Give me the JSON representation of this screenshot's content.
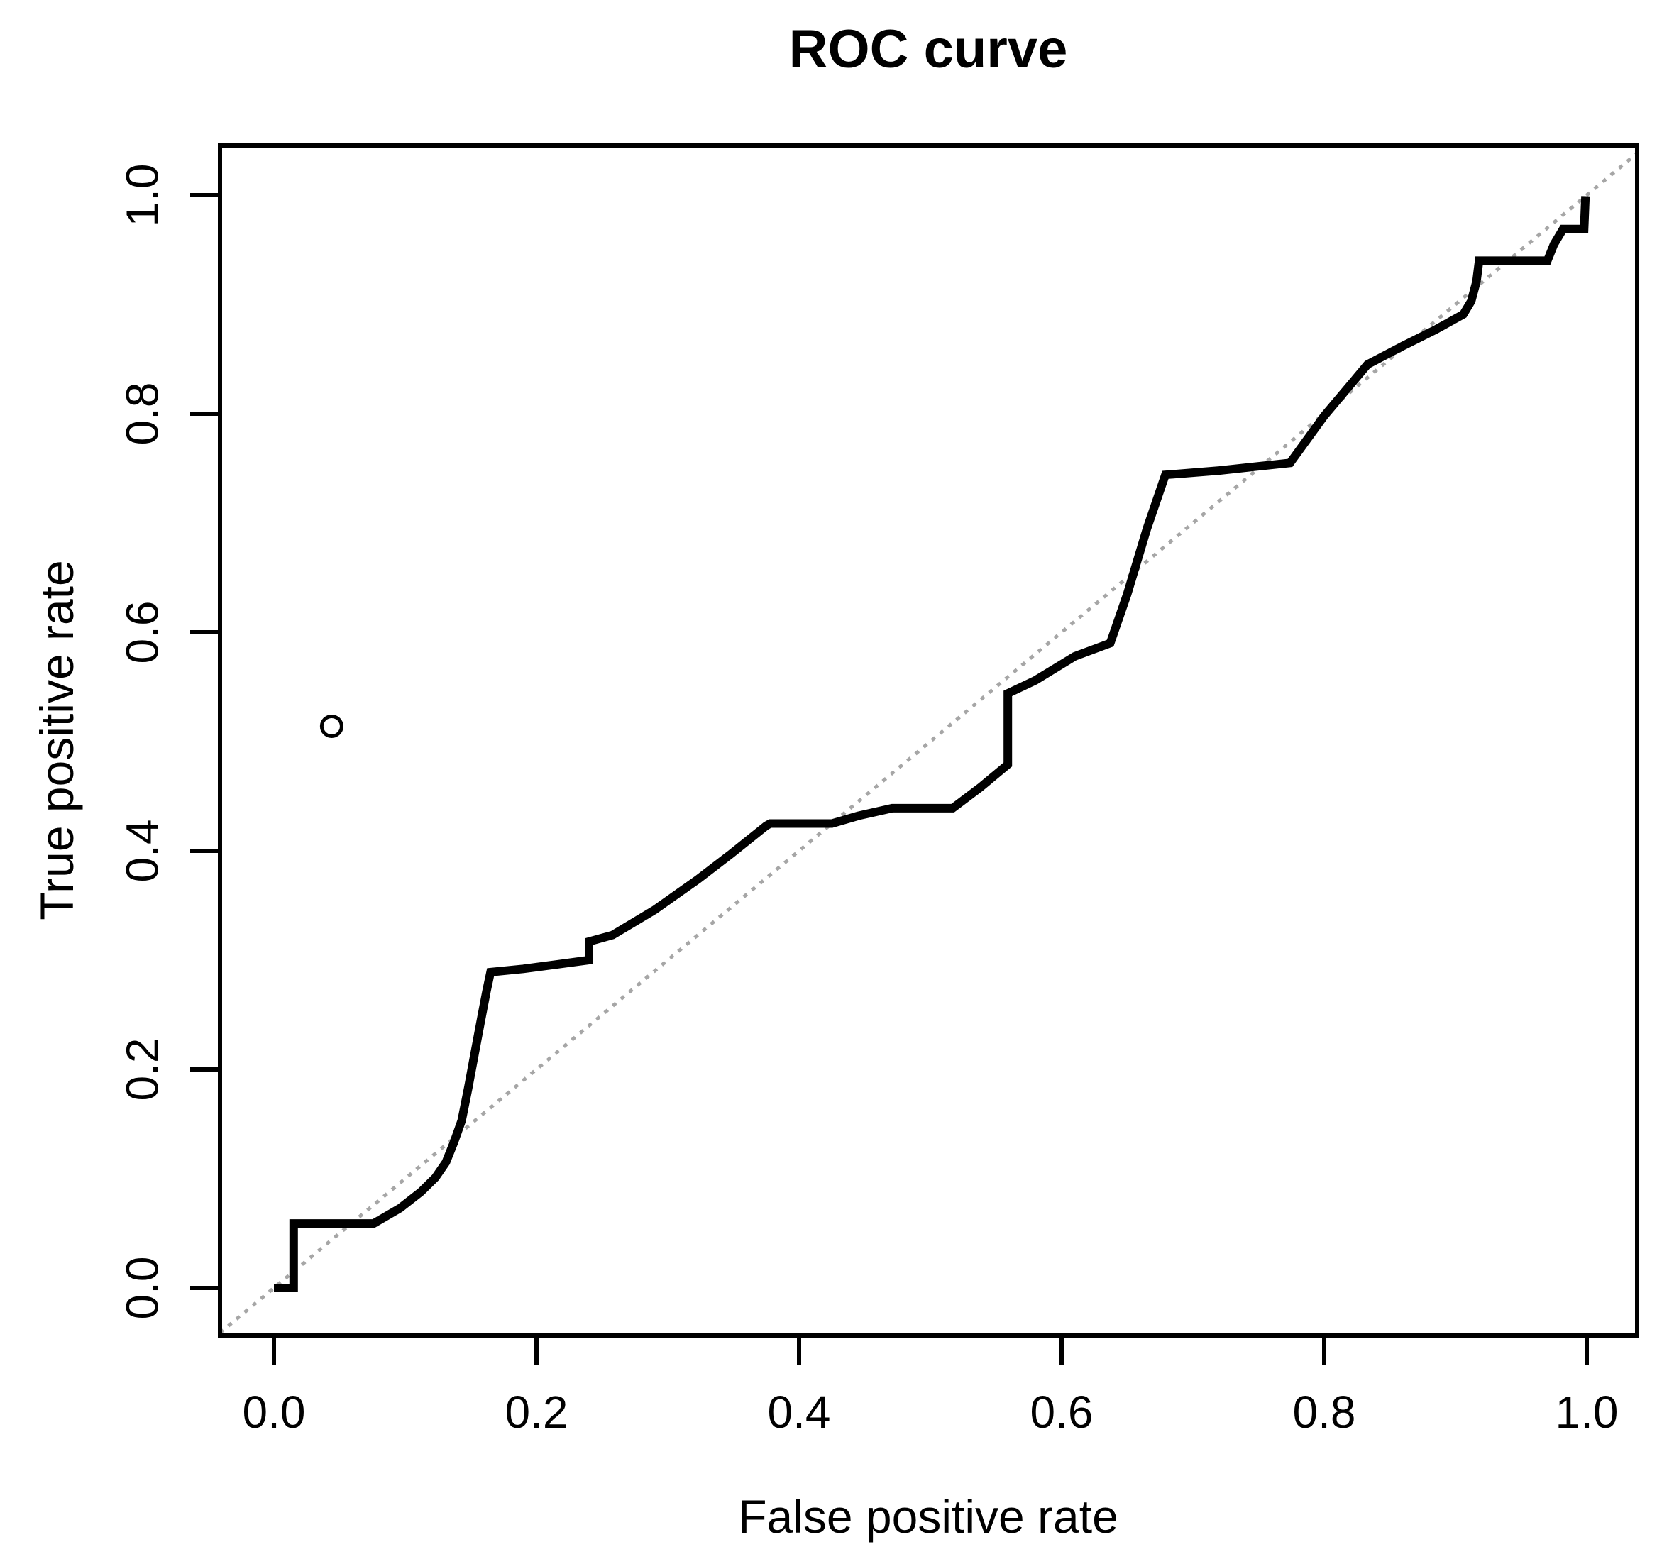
{
  "chart": {
    "title": "ROC curve",
    "x_axis": {
      "label": "False positive rate",
      "tick_labels": [
        "0.0",
        "0.2",
        "0.4",
        "0.6",
        "0.8",
        "1.0"
      ],
      "tick_values": [
        0,
        0.2,
        0.4,
        0.6,
        0.8,
        1.0
      ]
    },
    "y_axis": {
      "label": "True positive rate",
      "tick_labels": [
        "0.0",
        "0.2",
        "0.4",
        "0.6",
        "0.8",
        "1.0"
      ],
      "tick_values": [
        0,
        0.2,
        0.4,
        0.6,
        0.8,
        1.0
      ]
    }
  },
  "colors": {
    "curve": "#000000",
    "reference_line": "#a6a6a6",
    "axis": "#000000",
    "text": "#000000",
    "background": "#ffffff"
  },
  "chart_data": {
    "type": "line",
    "title": "ROC curve",
    "xlabel": "False positive rate",
    "ylabel": "True positive rate",
    "xlim": [
      -0.041,
      1.038
    ],
    "ylim": [
      -0.044,
      1.046
    ],
    "grid": false,
    "legend": "none",
    "series": [
      {
        "name": "roc-curve",
        "type": "step-line",
        "color": "#000000",
        "line_width": 12,
        "dash": "",
        "points": [
          [
            0.0,
            0.0
          ],
          [
            0.015,
            0.0
          ],
          [
            0.015,
            0.059
          ],
          [
            0.076,
            0.059
          ],
          [
            0.096,
            0.073
          ],
          [
            0.112,
            0.088
          ],
          [
            0.123,
            0.101
          ],
          [
            0.131,
            0.115
          ],
          [
            0.137,
            0.133
          ],
          [
            0.143,
            0.153
          ],
          [
            0.148,
            0.183
          ],
          [
            0.153,
            0.215
          ],
          [
            0.158,
            0.247
          ],
          [
            0.162,
            0.272
          ],
          [
            0.165,
            0.289
          ],
          [
            0.19,
            0.292
          ],
          [
            0.215,
            0.296
          ],
          [
            0.24,
            0.3
          ],
          [
            0.24,
            0.317
          ],
          [
            0.258,
            0.323
          ],
          [
            0.29,
            0.346
          ],
          [
            0.323,
            0.374
          ],
          [
            0.348,
            0.397
          ],
          [
            0.375,
            0.423
          ],
          [
            0.378,
            0.425
          ],
          [
            0.425,
            0.425
          ],
          [
            0.445,
            0.432
          ],
          [
            0.471,
            0.439
          ],
          [
            0.517,
            0.439
          ],
          [
            0.538,
            0.458
          ],
          [
            0.559,
            0.479
          ],
          [
            0.559,
            0.544
          ],
          [
            0.58,
            0.556
          ],
          [
            0.61,
            0.578
          ],
          [
            0.637,
            0.59
          ],
          [
            0.65,
            0.635
          ],
          [
            0.665,
            0.695
          ],
          [
            0.679,
            0.744
          ],
          [
            0.72,
            0.748
          ],
          [
            0.774,
            0.755
          ],
          [
            0.8,
            0.798
          ],
          [
            0.833,
            0.845
          ],
          [
            0.86,
            0.862
          ],
          [
            0.885,
            0.877
          ],
          [
            0.906,
            0.891
          ],
          [
            0.912,
            0.903
          ],
          [
            0.916,
            0.921
          ],
          [
            0.918,
            0.94
          ],
          [
            0.97,
            0.94
          ],
          [
            0.975,
            0.955
          ],
          [
            0.982,
            0.969
          ],
          [
            0.998,
            0.969
          ],
          [
            0.999,
            0.999
          ]
        ]
      },
      {
        "name": "chance-diagonal",
        "type": "line",
        "color": "#a6a6a6",
        "line_width": 5,
        "dash": "6 9",
        "points": [
          [
            -0.041,
            -0.041
          ],
          [
            1.038,
            1.038
          ]
        ]
      }
    ],
    "markers": [
      {
        "x": 0.044,
        "y": 0.514,
        "shape": "open-circle",
        "radius_px": 14
      }
    ]
  }
}
